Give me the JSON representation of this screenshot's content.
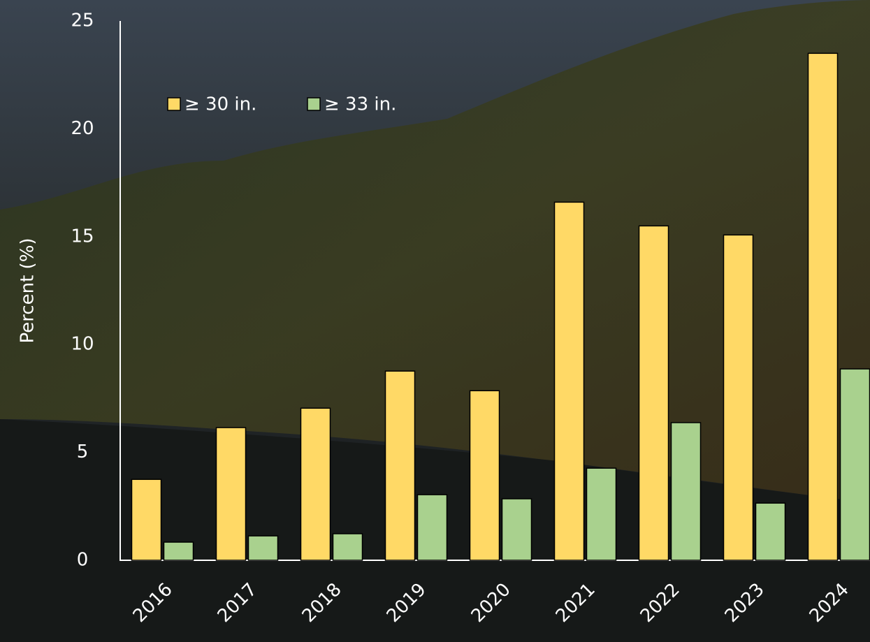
{
  "chart_data": {
    "type": "bar",
    "y_label": "Percent (%)",
    "categories": [
      "2016",
      "2017",
      "2018",
      "2019",
      "2020",
      "2021",
      "2022",
      "2023",
      "2024"
    ],
    "series": [
      {
        "name": "≥ 30 in.",
        "color": "#ffd966",
        "values": [
          3.75,
          6.15,
          7.05,
          8.77,
          7.86,
          16.6,
          15.5,
          15.08,
          23.5
        ]
      },
      {
        "name": "≥ 33 in.",
        "color": "#a9d18e",
        "values": [
          0.84,
          1.13,
          1.23,
          3.04,
          2.85,
          4.27,
          6.38,
          2.65,
          8.87
        ]
      }
    ],
    "ylim": [
      0,
      25
    ],
    "yticks": [
      0,
      5,
      10,
      15,
      20,
      25
    ],
    "grid": false
  }
}
